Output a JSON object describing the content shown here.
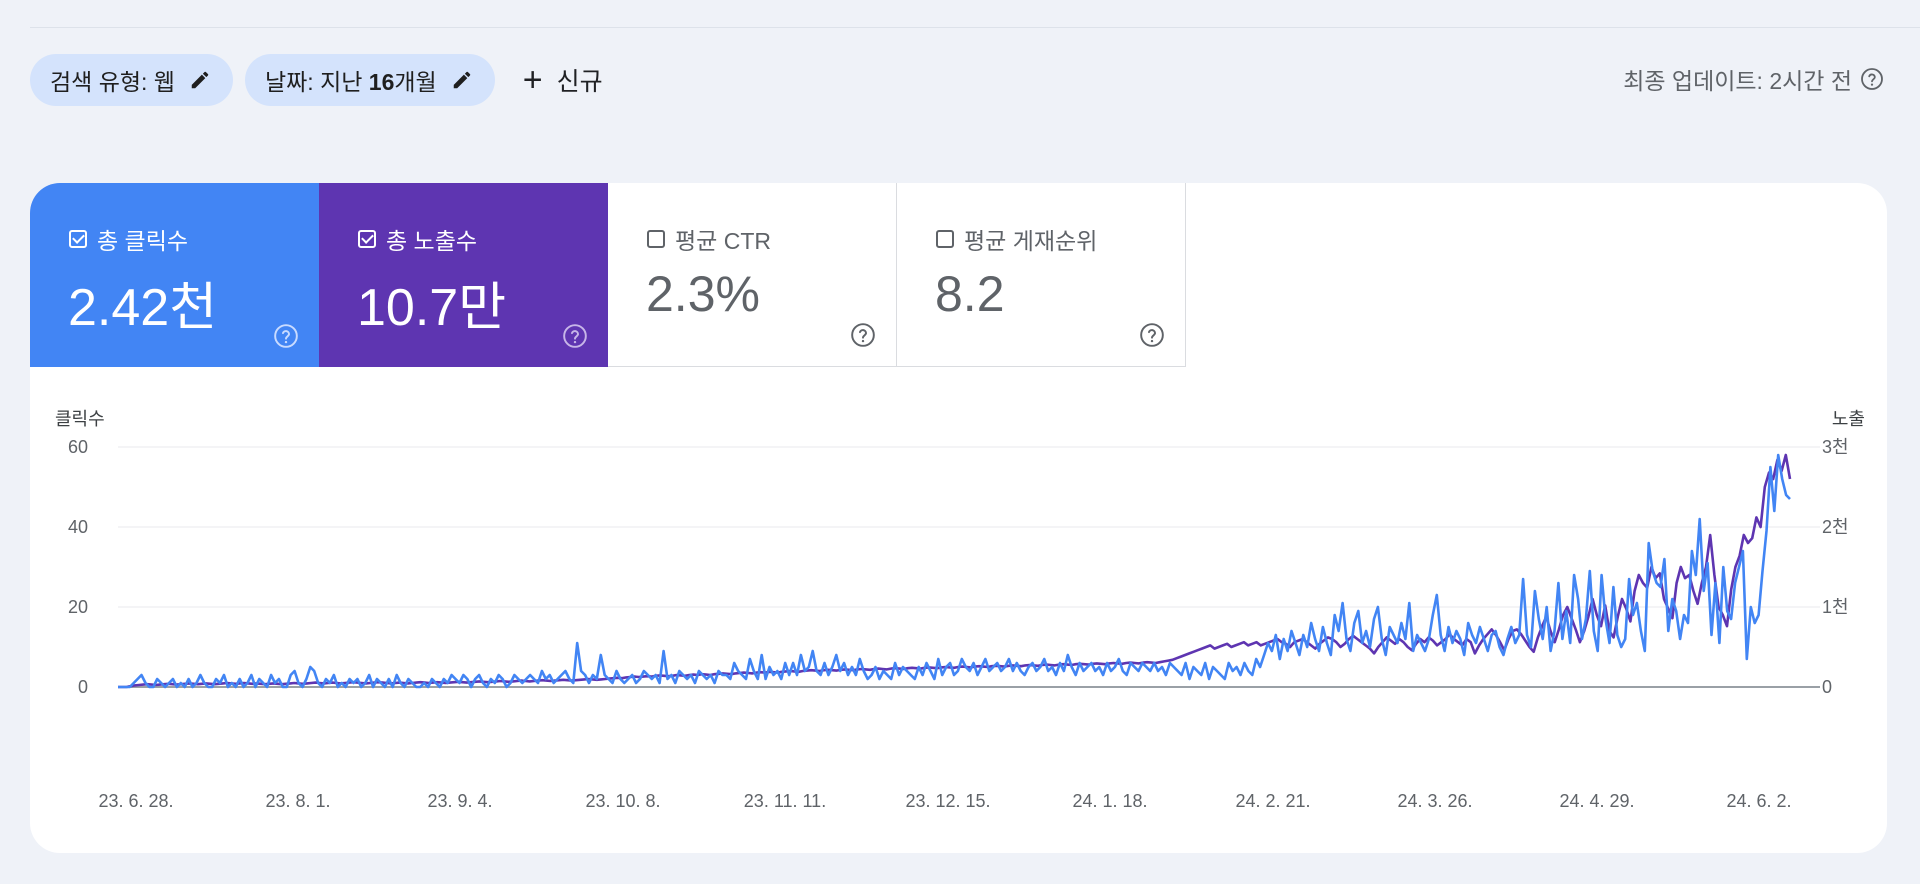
{
  "filters": {
    "search_type": "검색 유형: 웹",
    "date_prefix": "날짜: 지난",
    "date_num": "16",
    "date_unit": "개월",
    "new_label": "신규"
  },
  "last_update": "최종 업데이트: 2시간 전",
  "metrics": {
    "clicks": {
      "label": "총 클릭수",
      "value": "2.42천",
      "selected": true
    },
    "impressions": {
      "label": "총 노출수",
      "value": "10.7만",
      "selected": true
    },
    "ctr": {
      "label": "평균 CTR",
      "value": "2.3%",
      "selected": false
    },
    "position": {
      "label": "평균 게재순위",
      "value": "8.2",
      "selected": false
    }
  },
  "colors": {
    "clicks": "#4285f4",
    "impressions": "#5e35b1"
  },
  "icons": [
    "pencil-icon",
    "plus-icon",
    "help-icon",
    "checkbox-icon",
    "arrow-right-circle-icon"
  ],
  "chart_data": {
    "type": "line",
    "left_axis_title": "클릭수",
    "right_axis_title": "노출",
    "left_ticks": [
      "60",
      "40",
      "20",
      "0"
    ],
    "right_ticks": [
      "3천",
      "2천",
      "1천",
      "0"
    ],
    "ylim_left": [
      0,
      60
    ],
    "ylim_right": [
      0,
      3000
    ],
    "x_labels": [
      "23. 6. 28.",
      "23. 8. 1.",
      "23. 9. 4.",
      "23. 10. 8.",
      "23. 11. 11.",
      "23. 12. 15.",
      "24. 1. 18.",
      "24. 2. 21.",
      "24. 3. 26.",
      "24. 4. 29.",
      "24. 6. 2."
    ],
    "series": [
      {
        "name": "총 클릭수",
        "axis": "left",
        "color": "#4285f4",
        "values": [
          0,
          0,
          0,
          0,
          1,
          2,
          3,
          1,
          0,
          0,
          2,
          1,
          0,
          1,
          2,
          0,
          1,
          0,
          2,
          0,
          1,
          3,
          1,
          0,
          0,
          2,
          1,
          3,
          0,
          1,
          0,
          2,
          0,
          1,
          3,
          0,
          2,
          1,
          0,
          3,
          1,
          2,
          0,
          0,
          3,
          4,
          1,
          0,
          2,
          5,
          4,
          1,
          0,
          2,
          1,
          3,
          0,
          1,
          0,
          2,
          1,
          2,
          0,
          1,
          3,
          0,
          2,
          1,
          0,
          2,
          0,
          3,
          1,
          0,
          2,
          1,
          0,
          0,
          1,
          0,
          2,
          1,
          0,
          2,
          1,
          3,
          2,
          1,
          3,
          2,
          0,
          2,
          3,
          1,
          0,
          2,
          1,
          3,
          2,
          0,
          1,
          3,
          2,
          1,
          2,
          3,
          2,
          1,
          4,
          2,
          3,
          1,
          2,
          3,
          4,
          2,
          1,
          11,
          4,
          3,
          1,
          3,
          2,
          8,
          3,
          2,
          1,
          4,
          2,
          1,
          2,
          3,
          1,
          2,
          4,
          3,
          2,
          3,
          1,
          9,
          2,
          3,
          1,
          4,
          3,
          2,
          3,
          1,
          4,
          3,
          2,
          3,
          1,
          4,
          3,
          3,
          2,
          6,
          4,
          3,
          2,
          7,
          4,
          2,
          8,
          2,
          5,
          3,
          4,
          2,
          6,
          3,
          6,
          3,
          8,
          4,
          5,
          9,
          4,
          3,
          6,
          3,
          5,
          8,
          4,
          6,
          3,
          5,
          3,
          7,
          4,
          2,
          3,
          5,
          2,
          4,
          3,
          2,
          6,
          3,
          5,
          4,
          3,
          2,
          5,
          3,
          6,
          4,
          2,
          7,
          3,
          5,
          6,
          3,
          4,
          7,
          5,
          4,
          6,
          3,
          5,
          7,
          4,
          5,
          6,
          4,
          5,
          7,
          4,
          6,
          4,
          3,
          5,
          6,
          4,
          5,
          7,
          4,
          5,
          3,
          6,
          4,
          8,
          5,
          3,
          6,
          4,
          5,
          6,
          4,
          5,
          3,
          6,
          4,
          5,
          7,
          4,
          3,
          6,
          5,
          4,
          6,
          5,
          4,
          6,
          4,
          5,
          3,
          6,
          5,
          4,
          3,
          6,
          2,
          5,
          4,
          3,
          6,
          2,
          5,
          4,
          3,
          2,
          6,
          4,
          5,
          3,
          6,
          4,
          3,
          7,
          5,
          8,
          11,
          9,
          13,
          7,
          12,
          9,
          14,
          11,
          8,
          13,
          10,
          16,
          12,
          9,
          15,
          11,
          8,
          18,
          14,
          21,
          12,
          9,
          16,
          19,
          11,
          14,
          10,
          17,
          20,
          12,
          8,
          15,
          13,
          11,
          16,
          12,
          21,
          9,
          13,
          11,
          9,
          12,
          18,
          23,
          13,
          9,
          15,
          11,
          14,
          12,
          8,
          16,
          13,
          11,
          15,
          12,
          9,
          13,
          14,
          10,
          8,
          12,
          15,
          11,
          13,
          27,
          13,
          10,
          24,
          17,
          12,
          20,
          9,
          14,
          26,
          12,
          19,
          11,
          28,
          22,
          12,
          17,
          29,
          14,
          9,
          28,
          17,
          11,
          25,
          13,
          10,
          12,
          27,
          18,
          21,
          14,
          9,
          36,
          29,
          26,
          25,
          32,
          14,
          22,
          19,
          12,
          18,
          16,
          34,
          28,
          42,
          24,
          31,
          13,
          26,
          11,
          30,
          19,
          17,
          26,
          30,
          34,
          7,
          20,
          16,
          18,
          29,
          39,
          55,
          44,
          58,
          52,
          48,
          47
        ],
        "data_note": "daily clicks"
      },
      {
        "name": "총 노출수",
        "axis": "right",
        "color": "#5e35b1",
        "values": [
          0,
          0,
          0,
          10,
          20,
          25,
          30,
          35,
          30,
          25,
          30,
          35,
          40,
          35,
          30,
          35,
          40,
          45,
          40,
          35,
          40,
          45,
          40,
          35,
          40,
          45,
          50,
          45,
          40,
          45,
          50,
          45,
          40,
          45,
          40,
          35,
          40,
          45,
          40,
          35,
          40,
          45,
          50,
          45,
          40,
          45,
          50,
          55,
          50,
          45,
          50,
          55,
          50,
          45,
          50,
          55,
          60,
          55,
          50,
          45,
          50,
          55,
          60,
          55,
          50,
          45,
          50,
          55,
          50,
          45,
          50,
          55,
          60,
          55,
          50,
          55,
          60,
          55,
          50,
          55,
          60,
          65,
          60,
          55,
          60,
          65,
          70,
          65,
          60,
          65,
          70,
          75,
          70,
          65,
          70,
          75,
          80,
          75,
          70,
          75,
          80,
          85,
          80,
          75,
          80,
          85,
          90,
          85,
          80,
          85,
          90,
          95,
          100,
          95,
          90,
          95,
          100,
          105,
          110,
          115,
          110,
          120,
          125,
          130,
          125,
          130,
          135,
          130,
          140,
          145,
          140,
          135,
          140,
          150,
          145,
          140,
          150,
          155,
          150,
          160,
          155,
          150,
          160,
          165,
          170,
          165,
          160,
          170,
          175,
          180,
          175,
          170,
          180,
          185,
          180,
          190,
          185,
          180,
          190,
          195,
          200,
          195,
          190,
          200,
          205,
          210,
          205,
          200,
          210,
          215,
          210,
          205,
          215,
          220,
          215,
          210,
          220,
          225,
          220,
          215,
          225,
          230,
          225,
          220,
          230,
          235,
          230,
          225,
          235,
          240,
          235,
          230,
          240,
          245,
          240,
          235,
          245,
          250,
          245,
          240,
          250,
          255,
          250,
          245,
          255,
          260,
          255,
          250,
          260,
          265,
          260,
          255,
          265,
          270,
          265,
          260,
          270,
          275,
          270,
          265,
          275,
          280,
          275,
          270,
          280,
          285,
          280,
          275,
          285,
          290,
          285,
          280,
          290,
          295,
          290,
          285,
          295,
          300,
          295,
          290,
          300,
          305,
          300,
          295,
          305,
          310,
          305,
          300,
          310,
          320,
          330,
          340,
          360,
          380,
          400,
          420,
          440,
          460,
          480,
          500,
          520,
          480,
          500,
          520,
          540,
          500,
          520,
          540,
          560,
          520,
          540,
          560,
          520,
          540,
          560,
          580,
          600,
          560,
          540,
          500,
          560,
          580,
          600,
          560,
          520,
          480,
          540,
          580,
          620,
          600,
          560,
          500,
          540,
          600,
          640,
          600,
          560,
          520,
          480,
          420,
          500,
          560,
          620,
          580,
          540,
          600,
          560,
          500,
          460,
          540,
          600,
          560,
          620,
          580,
          520,
          560,
          600,
          660,
          600,
          560,
          520,
          600,
          560,
          420,
          520,
          600,
          660,
          720,
          650,
          560,
          460,
          600,
          700,
          720,
          660,
          580,
          500,
          440,
          620,
          760,
          880,
          700,
          560,
          720,
          900,
          1000,
          860,
          720,
          560,
          700,
          880,
          1100,
          900,
          760,
          1020,
          700,
          620,
          880,
          1100,
          980,
          820,
          1200,
          1400,
          1300,
          1240,
          1500,
          1360,
          1420,
          1100,
          980,
          860,
          1300,
          1500,
          1360,
          1400,
          1200,
          1040,
          1300,
          1500,
          1900,
          1400,
          1000,
          900,
          760,
          1220,
          1500,
          1640,
          1900,
          1800,
          1860,
          2120,
          2000,
          2500,
          2680,
          2600,
          2840,
          2700,
          2900,
          2600
        ]
      }
    ]
  }
}
